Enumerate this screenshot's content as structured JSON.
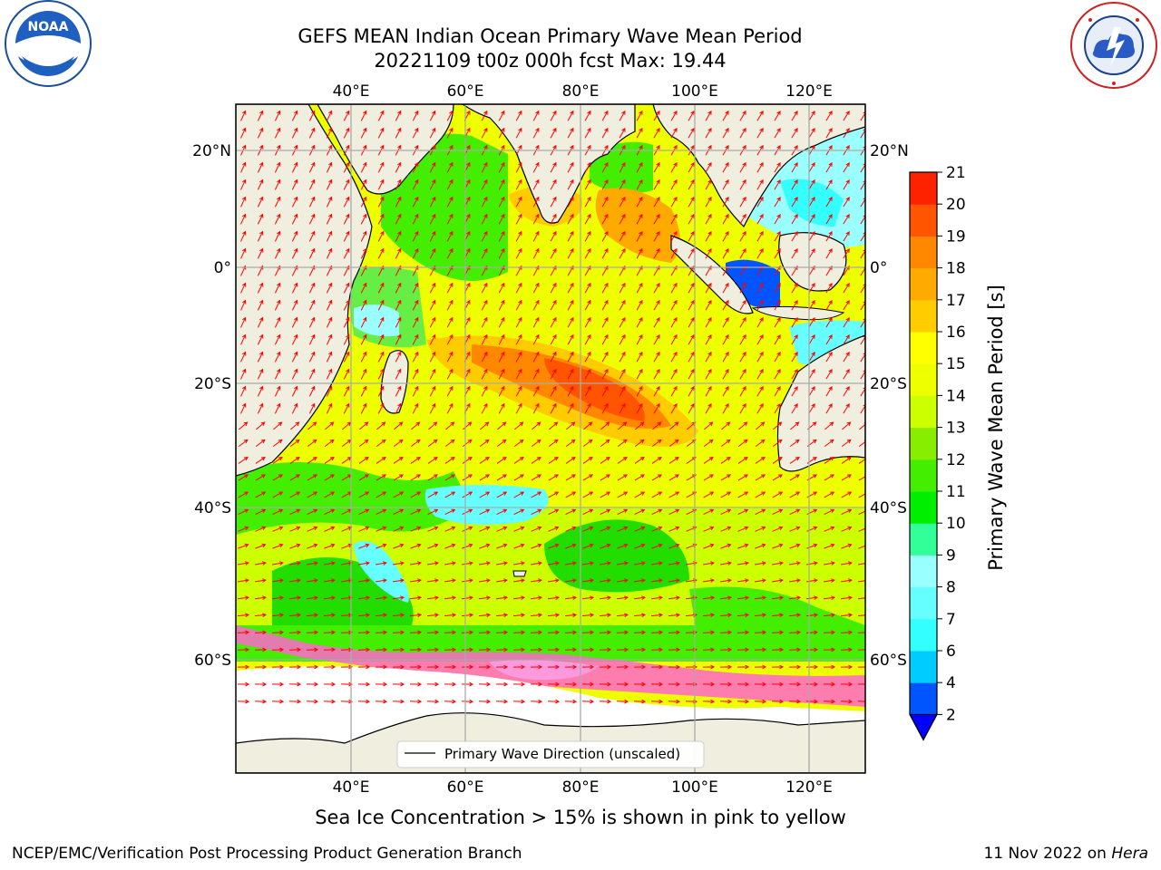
{
  "header": {
    "title_line1": "GEFS MEAN Indian Ocean Primary Wave Mean Period",
    "title_line2": "20221109 t00z 000h fcst   Max: 19.44"
  },
  "logos": {
    "left_text": "NOAA"
  },
  "map": {
    "lon_labels": [
      "40°E",
      "60°E",
      "80°E",
      "100°E",
      "120°E"
    ],
    "lat_labels": [
      "20°N",
      "0°",
      "20°S",
      "40°S",
      "60°S"
    ],
    "legend_label": "Primary Wave Direction (unscaled)",
    "colors": {
      "land": "#f0eede",
      "ice": "#ff66cc",
      "vector": "#ff0000"
    }
  },
  "colorbar": {
    "label": "Primary Wave Mean Period [s]",
    "tick_labels": [
      "2",
      "4",
      "6",
      "7",
      "8",
      "9",
      "10",
      "11",
      "12",
      "13",
      "14",
      "15",
      "16",
      "17",
      "18",
      "19",
      "20",
      "21"
    ],
    "colors": [
      "#0055ff",
      "#00ccff",
      "#33ffff",
      "#66ffff",
      "#99ffff",
      "#33ff99",
      "#00ee00",
      "#44ee00",
      "#88ee00",
      "#ccff00",
      "#eeff00",
      "#ffff00",
      "#ffcc00",
      "#ffaa00",
      "#ff8800",
      "#ff5500",
      "#ff2200"
    ]
  },
  "footer": {
    "caption": "Sea Ice Concentration > 15% is shown in pink to yellow",
    "left": "NCEP/EMC/Verification Post Processing Product Generation Branch",
    "right_date": "11 Nov 2022 on ",
    "right_host": "Hera"
  }
}
